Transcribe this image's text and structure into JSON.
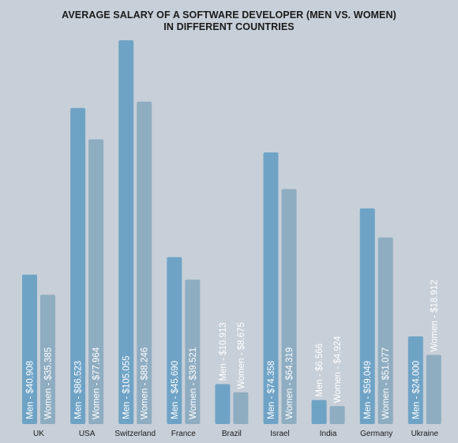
{
  "chart_data": {
    "type": "bar",
    "title": "AVERAGE SALARY OF A SOFTWARE DEVELOPER (MEN VS. WOMEN)",
    "subtitle": "IN DIFFERENT COUNTRIES",
    "categories": [
      "UK",
      "USA",
      "Switzerland",
      "France",
      "Brazil",
      "Israel",
      "India",
      "Germany",
      "Ukraine"
    ],
    "series": [
      {
        "name": "Men",
        "color": "#6fa3c6",
        "values": [
          40908,
          86523,
          105055,
          45690,
          10913,
          74358,
          6566,
          59049,
          24000
        ],
        "labels": [
          "Men - $40.908",
          "Men - $86.523",
          "Men - $105.055",
          "Men - $45.690",
          "Men - $10.913",
          "Men - $74.358",
          "Men - $6.566",
          "Men - $59.049",
          "Men - $24.000"
        ]
      },
      {
        "name": "Women",
        "color": "#8fadc1",
        "values": [
          35385,
          77964,
          88246,
          39521,
          8675,
          64319,
          4924,
          51077,
          18912
        ],
        "labels": [
          "Women - $35.385",
          "Women - $77.964",
          "Women - $88.246",
          "Women - $39.521",
          "Women - $8.675",
          "Women - $64.319",
          "Women - $4.924",
          "Women - $51.077",
          "Women - $18.912"
        ]
      }
    ],
    "ylim": [
      0,
      105055
    ],
    "grid": false,
    "background": "#c7cfd8"
  }
}
